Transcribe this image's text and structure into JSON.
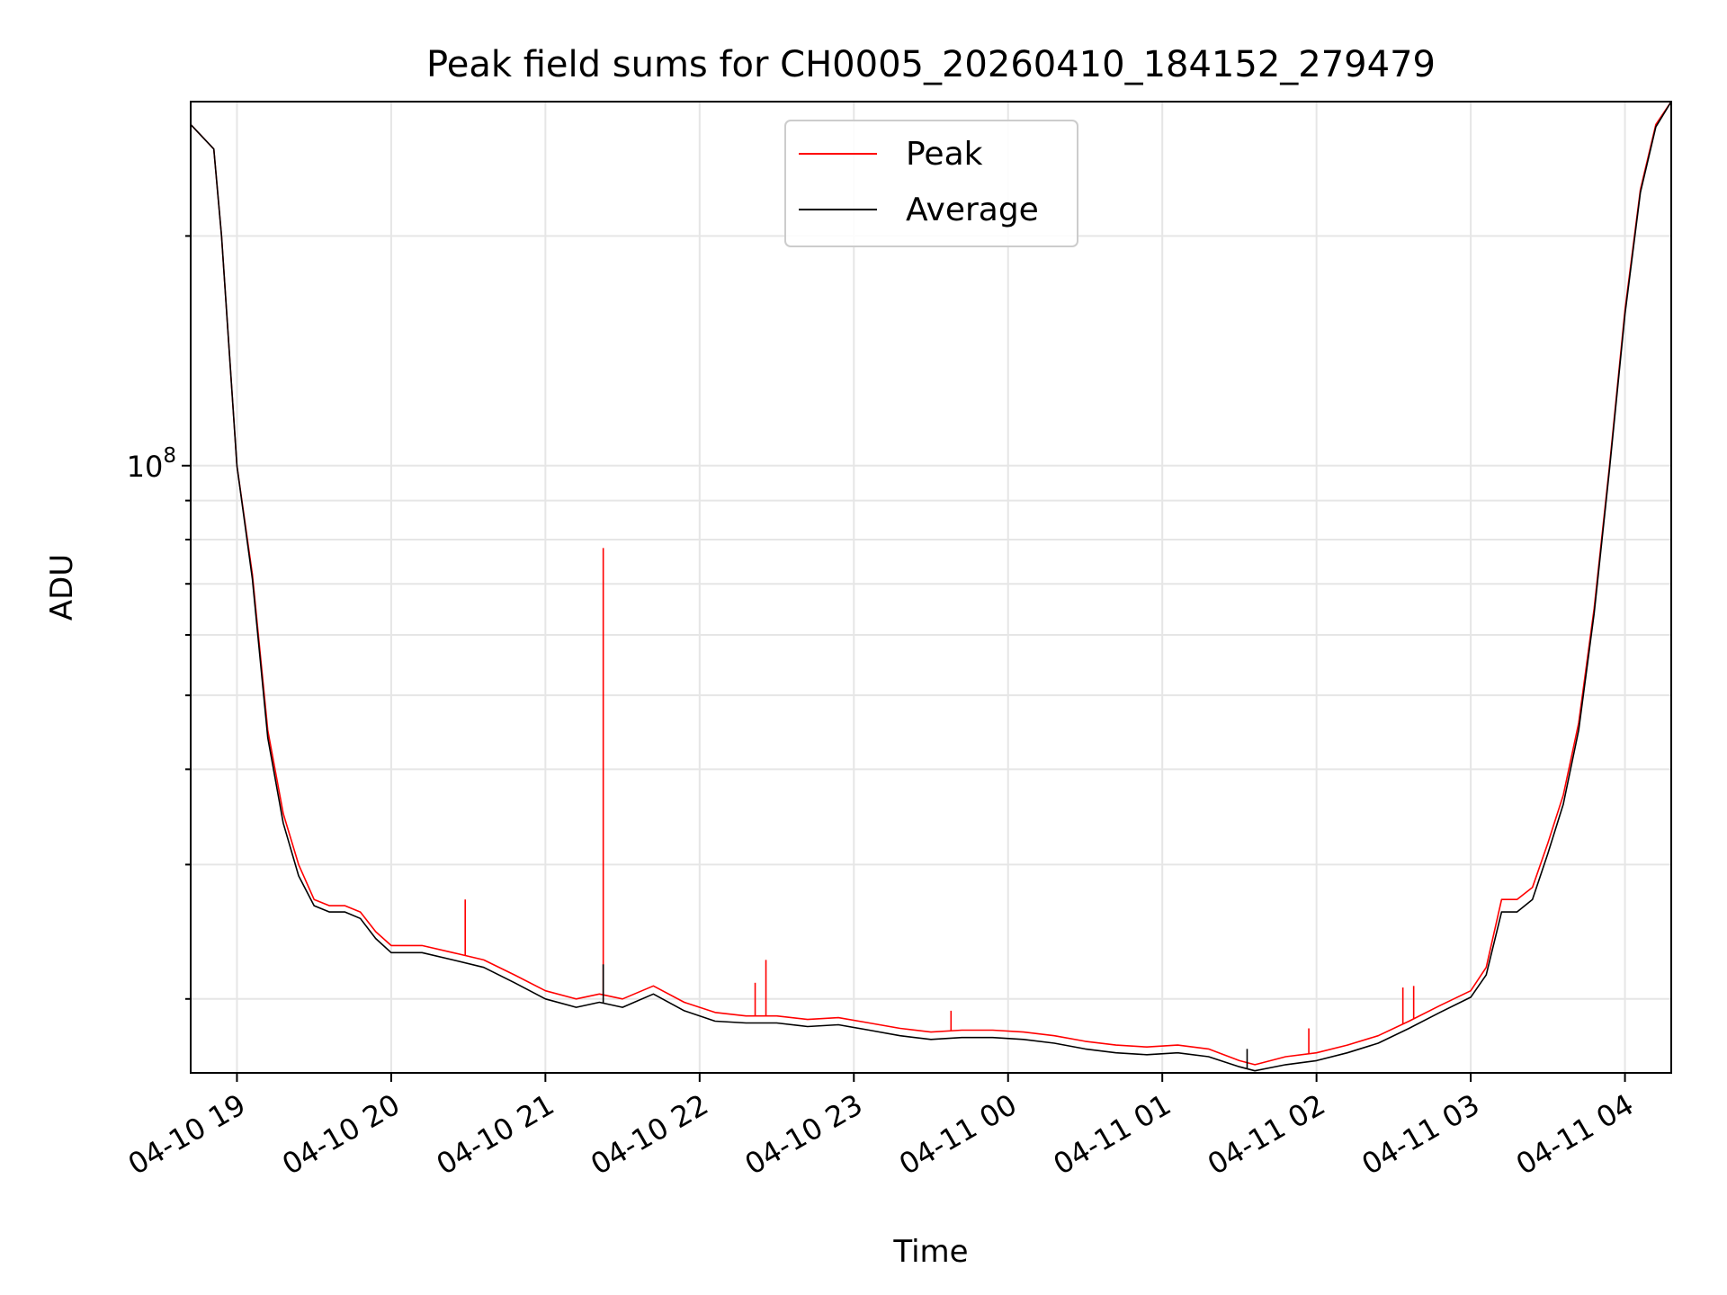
{
  "chart_data": {
    "type": "line",
    "title": "Peak field sums for CH0005_20260410_184152_279479",
    "xlabel": "Time",
    "ylabel": "ADU",
    "yscale": "log",
    "xlim_hours": [
      18.7,
      28.3
    ],
    "ylim": [
      16000000,
      300000000
    ],
    "x_ticks": [
      {
        "hours": 19,
        "label": "04-10 19"
      },
      {
        "hours": 20,
        "label": "04-10 20"
      },
      {
        "hours": 21,
        "label": "04-10 21"
      },
      {
        "hours": 22,
        "label": "04-10 22"
      },
      {
        "hours": 23,
        "label": "04-10 23"
      },
      {
        "hours": 24,
        "label": "04-11 00"
      },
      {
        "hours": 25,
        "label": "04-11 01"
      },
      {
        "hours": 26,
        "label": "04-11 02"
      },
      {
        "hours": 27,
        "label": "04-11 03"
      },
      {
        "hours": 28,
        "label": "04-11 04"
      }
    ],
    "y_major_ticks": [
      {
        "value": 100000000,
        "base": "10",
        "exp": "8"
      }
    ],
    "y_minor_ticks": [
      20000000,
      30000000,
      40000000,
      50000000,
      60000000,
      70000000,
      80000000,
      90000000,
      200000000
    ],
    "legend": {
      "position": "upper center"
    },
    "grid": true,
    "series": [
      {
        "name": "Peak",
        "color": "#ff0000",
        "x_hours": [
          18.7,
          18.85,
          18.9,
          19.0,
          19.1,
          19.2,
          19.3,
          19.4,
          19.5,
          19.6,
          19.7,
          19.8,
          19.9,
          20.0,
          20.2,
          20.4,
          20.6,
          20.8,
          21.0,
          21.2,
          21.35,
          21.5,
          21.7,
          21.9,
          22.1,
          22.3,
          22.5,
          22.7,
          22.9,
          23.1,
          23.3,
          23.5,
          23.7,
          23.9,
          24.1,
          24.3,
          24.5,
          24.7,
          24.9,
          25.1,
          25.3,
          25.5,
          25.6,
          25.8,
          26.0,
          26.2,
          26.4,
          26.6,
          26.8,
          27.0,
          27.1,
          27.2,
          27.3,
          27.4,
          27.5,
          27.6,
          27.7,
          27.8,
          27.9,
          28.0,
          28.1,
          28.2,
          28.3
        ],
        "values": [
          280000000,
          260000000,
          200000000,
          100000000,
          72000000,
          45000000,
          35000000,
          30000000,
          27000000,
          26500000,
          26500000,
          26000000,
          24500000,
          23500000,
          23500000,
          23000000,
          22500000,
          21500000,
          20500000,
          20000000,
          20300000,
          20000000,
          20800000,
          19800000,
          19200000,
          19000000,
          19000000,
          18800000,
          18900000,
          18600000,
          18300000,
          18100000,
          18200000,
          18200000,
          18100000,
          17900000,
          17600000,
          17400000,
          17300000,
          17400000,
          17200000,
          16600000,
          16400000,
          16800000,
          17000000,
          17400000,
          17900000,
          18700000,
          19600000,
          20500000,
          22000000,
          27000000,
          27000000,
          28000000,
          32000000,
          37000000,
          46000000,
          65000000,
          100000000,
          160000000,
          230000000,
          280000000,
          300000000
        ],
        "spikes": [
          {
            "x_hours": 21.375,
            "value": 78000000
          },
          {
            "x_hours": 20.48,
            "value": 27000000
          },
          {
            "x_hours": 22.43,
            "value": 22500000
          },
          {
            "x_hours": 22.36,
            "value": 21000000
          },
          {
            "x_hours": 23.63,
            "value": 19300000
          },
          {
            "x_hours": 25.95,
            "value": 18300000
          },
          {
            "x_hours": 26.56,
            "value": 20700000
          },
          {
            "x_hours": 26.63,
            "value": 20800000
          }
        ]
      },
      {
        "name": "Average",
        "color": "#000000",
        "x_hours": [
          18.7,
          18.85,
          18.9,
          19.0,
          19.1,
          19.2,
          19.3,
          19.4,
          19.5,
          19.6,
          19.7,
          19.8,
          19.9,
          20.0,
          20.2,
          20.4,
          20.6,
          20.8,
          21.0,
          21.2,
          21.35,
          21.5,
          21.7,
          21.9,
          22.1,
          22.3,
          22.5,
          22.7,
          22.9,
          23.1,
          23.3,
          23.5,
          23.7,
          23.9,
          24.1,
          24.3,
          24.5,
          24.7,
          24.9,
          25.1,
          25.3,
          25.5,
          25.6,
          25.8,
          26.0,
          26.2,
          26.4,
          26.6,
          26.8,
          27.0,
          27.1,
          27.2,
          27.3,
          27.4,
          27.5,
          27.6,
          27.7,
          27.8,
          27.9,
          28.0,
          28.1,
          28.2,
          28.3
        ],
        "values": [
          280000000,
          260000000,
          200000000,
          100000000,
          71000000,
          44000000,
          34000000,
          29000000,
          26500000,
          26000000,
          26000000,
          25500000,
          24000000,
          23000000,
          23000000,
          22500000,
          22000000,
          21000000,
          20000000,
          19500000,
          19800000,
          19500000,
          20300000,
          19300000,
          18700000,
          18600000,
          18600000,
          18400000,
          18500000,
          18200000,
          17900000,
          17700000,
          17800000,
          17800000,
          17700000,
          17500000,
          17200000,
          17000000,
          16900000,
          17000000,
          16800000,
          16300000,
          16100000,
          16400000,
          16600000,
          17000000,
          17500000,
          18300000,
          19200000,
          20100000,
          21500000,
          26000000,
          26000000,
          27000000,
          31000000,
          36000000,
          45000000,
          64000000,
          99000000,
          158000000,
          228000000,
          278000000,
          300000000
        ],
        "spikes": [
          {
            "x_hours": 21.375,
            "value": 22200000
          },
          {
            "x_hours": 25.55,
            "value": 17200000
          }
        ]
      }
    ]
  }
}
